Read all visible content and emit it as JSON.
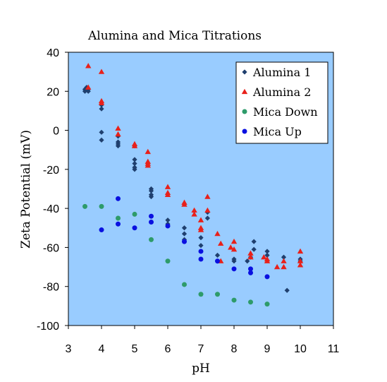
{
  "chart_data": {
    "type": "scatter",
    "title": "Alumina and Mica Titrations",
    "xlabel": "pH",
    "ylabel": "Zeta Potential (mV)",
    "xlim": [
      3,
      11
    ],
    "ylim": [
      -100,
      40
    ],
    "x_ticks": [
      "3",
      "4",
      "5",
      "6",
      "7",
      "8",
      "9",
      "10",
      "11"
    ],
    "y_ticks": [
      "40",
      "20",
      "0",
      "-20",
      "-40",
      "-60",
      "-80",
      "-100"
    ],
    "grid": false,
    "plot_background": "#99ccff",
    "legend_position": "top-right",
    "series": [
      {
        "name": "Alumina 1",
        "marker": "diamond",
        "color": "#1f3f6e",
        "points": [
          [
            3.5,
            21
          ],
          [
            3.5,
            20
          ],
          [
            3.55,
            22
          ],
          [
            3.6,
            21
          ],
          [
            3.6,
            20
          ],
          [
            4.0,
            11
          ],
          [
            4.0,
            -1
          ],
          [
            4.0,
            -5
          ],
          [
            4.0,
            13
          ],
          [
            4.5,
            -6
          ],
          [
            4.5,
            -7
          ],
          [
            4.5,
            -8
          ],
          [
            4.5,
            -3
          ],
          [
            5.0,
            -15
          ],
          [
            5.0,
            -17
          ],
          [
            5.0,
            -19
          ],
          [
            5.0,
            -20
          ],
          [
            5.0,
            -8
          ],
          [
            5.5,
            -30
          ],
          [
            5.5,
            -31
          ],
          [
            5.5,
            -33
          ],
          [
            5.5,
            -34
          ],
          [
            6.0,
            -46
          ],
          [
            6.0,
            -48
          ],
          [
            6.0,
            -49
          ],
          [
            6.5,
            -50
          ],
          [
            6.5,
            -53
          ],
          [
            6.5,
            -56
          ],
          [
            6.5,
            -57
          ],
          [
            7.0,
            -55
          ],
          [
            7.0,
            -59
          ],
          [
            7.2,
            -42
          ],
          [
            7.2,
            -45
          ],
          [
            7.5,
            -64
          ],
          [
            7.5,
            -67
          ],
          [
            8.0,
            -66
          ],
          [
            8.0,
            -67
          ],
          [
            8.4,
            -67
          ],
          [
            8.5,
            -65
          ],
          [
            8.6,
            -57
          ],
          [
            8.6,
            -61
          ],
          [
            9.0,
            -62
          ],
          [
            9.0,
            -64
          ],
          [
            9.5,
            -65
          ],
          [
            9.6,
            -82
          ],
          [
            10.0,
            -66
          ],
          [
            10.0,
            -67
          ]
        ]
      },
      {
        "name": "Alumina 2",
        "marker": "triangle",
        "color": "#e8201a",
        "points": [
          [
            3.6,
            33
          ],
          [
            3.6,
            22
          ],
          [
            4.0,
            30
          ],
          [
            4.0,
            15
          ],
          [
            4.0,
            14
          ],
          [
            4.5,
            1
          ],
          [
            4.5,
            -2
          ],
          [
            5.0,
            -7
          ],
          [
            5.0,
            -8
          ],
          [
            5.4,
            -11
          ],
          [
            5.4,
            -16
          ],
          [
            5.4,
            -17
          ],
          [
            5.4,
            -18
          ],
          [
            6.0,
            -29
          ],
          [
            6.0,
            -32
          ],
          [
            6.0,
            -33
          ],
          [
            6.5,
            -37
          ],
          [
            6.5,
            -38
          ],
          [
            6.8,
            -41
          ],
          [
            6.8,
            -43
          ],
          [
            7.0,
            -46
          ],
          [
            7.0,
            -50
          ],
          [
            7.0,
            -51
          ],
          [
            7.2,
            -34
          ],
          [
            7.2,
            -41
          ],
          [
            7.5,
            -53
          ],
          [
            7.6,
            -58
          ],
          [
            7.6,
            -67
          ],
          [
            7.9,
            -60
          ],
          [
            8.0,
            -57
          ],
          [
            8.0,
            -61
          ],
          [
            8.5,
            -63
          ],
          [
            8.5,
            -65
          ],
          [
            8.9,
            -65
          ],
          [
            9.0,
            -66
          ],
          [
            9.0,
            -67
          ],
          [
            9.3,
            -70
          ],
          [
            9.5,
            -67
          ],
          [
            9.5,
            -70
          ],
          [
            10.0,
            -62
          ],
          [
            10.0,
            -67
          ],
          [
            10.0,
            -69
          ]
        ]
      },
      {
        "name": "Mica Down",
        "marker": "circle",
        "color": "#2e9b6a",
        "points": [
          [
            3.5,
            -39
          ],
          [
            4.0,
            -39
          ],
          [
            4.5,
            -45
          ],
          [
            5.0,
            -43
          ],
          [
            5.5,
            -56
          ],
          [
            6.0,
            -67
          ],
          [
            6.5,
            -79
          ],
          [
            7.0,
            -84
          ],
          [
            7.5,
            -84
          ],
          [
            8.0,
            -87
          ],
          [
            8.5,
            -88
          ],
          [
            9.0,
            -89
          ]
        ]
      },
      {
        "name": "Mica Up",
        "marker": "circle",
        "color": "#0a10e0",
        "points": [
          [
            4.0,
            -51
          ],
          [
            4.5,
            -35
          ],
          [
            4.5,
            -48
          ],
          [
            5.0,
            -50
          ],
          [
            5.5,
            -44
          ],
          [
            5.5,
            -47
          ],
          [
            6.0,
            -49
          ],
          [
            6.5,
            -57
          ],
          [
            7.0,
            -62
          ],
          [
            7.0,
            -66
          ],
          [
            7.5,
            -67
          ],
          [
            8.0,
            -71
          ],
          [
            8.5,
            -71
          ],
          [
            8.5,
            -73
          ],
          [
            9.0,
            -75
          ]
        ]
      }
    ]
  }
}
